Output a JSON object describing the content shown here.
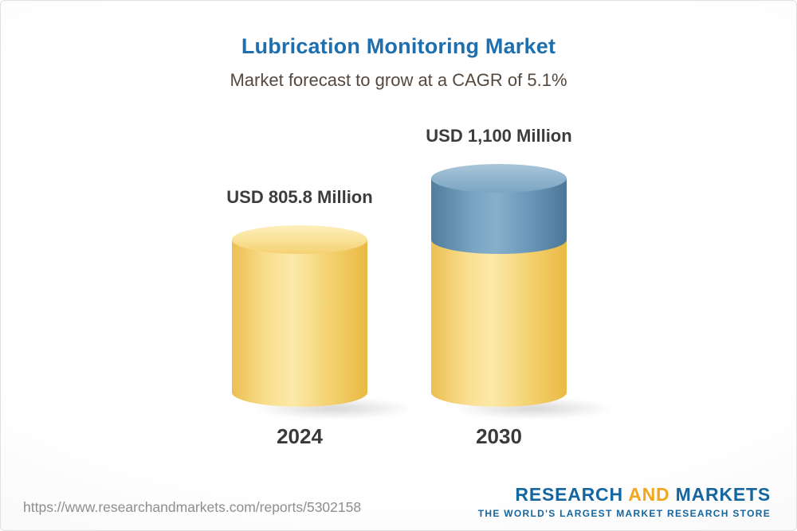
{
  "chart_data": {
    "type": "bar",
    "title": "Lubrication Monitoring Market",
    "subtitle": "Market forecast to grow at a CAGR of 5.1%",
    "categories": [
      "2024",
      "2030"
    ],
    "series": [
      {
        "name": "Market value (USD Million)",
        "values": [
          805.8,
          1100
        ]
      }
    ],
    "value_labels": [
      "USD 805.8 Million",
      "USD 1,100 Million"
    ],
    "unit": "USD Million",
    "cagr_pct": 5.1,
    "legend": "none",
    "grid": false,
    "colors": {
      "bar_base": "#f3cf6b",
      "bar_growth": "#6b98b9",
      "title": "#1e6fad",
      "value_label": "#3c3c3c"
    }
  },
  "footer": {
    "url": "https://www.researchandmarkets.com/reports/5302158",
    "logo": {
      "part1": "RESEARCH",
      "part2": "AND",
      "part3": "MARKETS",
      "tagline": "THE WORLD'S LARGEST MARKET RESEARCH STORE"
    }
  }
}
